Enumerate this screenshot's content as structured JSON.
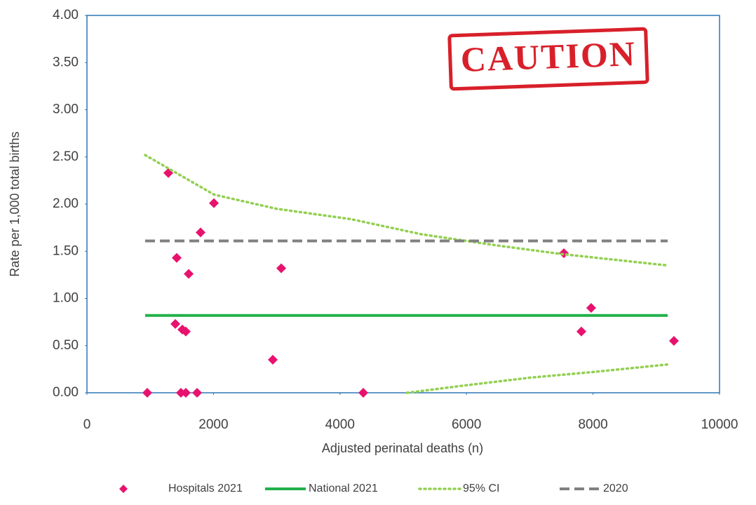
{
  "chart_data": {
    "type": "scatter",
    "x_label": "Adjusted perinatal deaths (n)",
    "y_label": "Rate per 1,000 total births",
    "annotation": "CAUTION",
    "xlim": [
      0,
      10000
    ],
    "xticks": [
      0,
      2000,
      4000,
      6000,
      8000,
      10000
    ],
    "ylim": [
      0,
      4
    ],
    "yticks": [
      {
        "value": 0,
        "label": "0.00"
      },
      {
        "value": 0.5,
        "label": "0.50"
      },
      {
        "value": 1,
        "label": "1.00"
      },
      {
        "value": 1.5,
        "label": "1.50"
      },
      {
        "value": 2,
        "label": "2.00"
      },
      {
        "value": 2.5,
        "label": "2.50"
      },
      {
        "value": 3,
        "label": "3.00"
      },
      {
        "value": 3.5,
        "label": "3.50"
      },
      {
        "value": 4,
        "label": "4.00"
      }
    ],
    "grid": false,
    "legend": "bottom",
    "series": [
      {
        "name": "Hospitals 2021",
        "color": "#e8126e",
        "mode": "markers",
        "x": [
          953,
          1286,
          1419,
          1397,
          1486,
          1508,
          1563,
          1563,
          1608,
          1741,
          1796,
          2007,
          2938,
          3071,
          4368,
          7539,
          7816,
          7971,
          9279
        ],
        "values": [
          0,
          2.33,
          1.43,
          0.73,
          0,
          0.67,
          0.65,
          0,
          1.26,
          0,
          1.7,
          2.01,
          0.35,
          1.32,
          0,
          1.48,
          0.65,
          0.9,
          0.55
        ]
      },
      {
        "name": "National 2021",
        "color": "#21b14b",
        "mode": "lines",
        "dash": "solid",
        "x": [
          920,
          9180
        ],
        "values": [
          0.82,
          0.82
        ]
      },
      {
        "name": "95% CI",
        "color": "#92d050",
        "mode": "lines",
        "dash": "dotted",
        "x": [
          920,
          2011,
          3000,
          4178,
          5290,
          6500,
          7510,
          9180,
          null,
          5060,
          6000,
          7000,
          8000,
          9180
        ],
        "values": [
          2.52,
          2.1,
          1.95,
          1.84,
          1.68,
          1.56,
          1.47,
          1.35,
          null,
          0,
          0.08,
          0.16,
          0.22,
          0.3
        ]
      },
      {
        "name": "2020",
        "color": "#808080",
        "mode": "lines",
        "dash": "dashed",
        "x": [
          920,
          9180
        ],
        "values": [
          1.61,
          1.61
        ]
      }
    ]
  }
}
